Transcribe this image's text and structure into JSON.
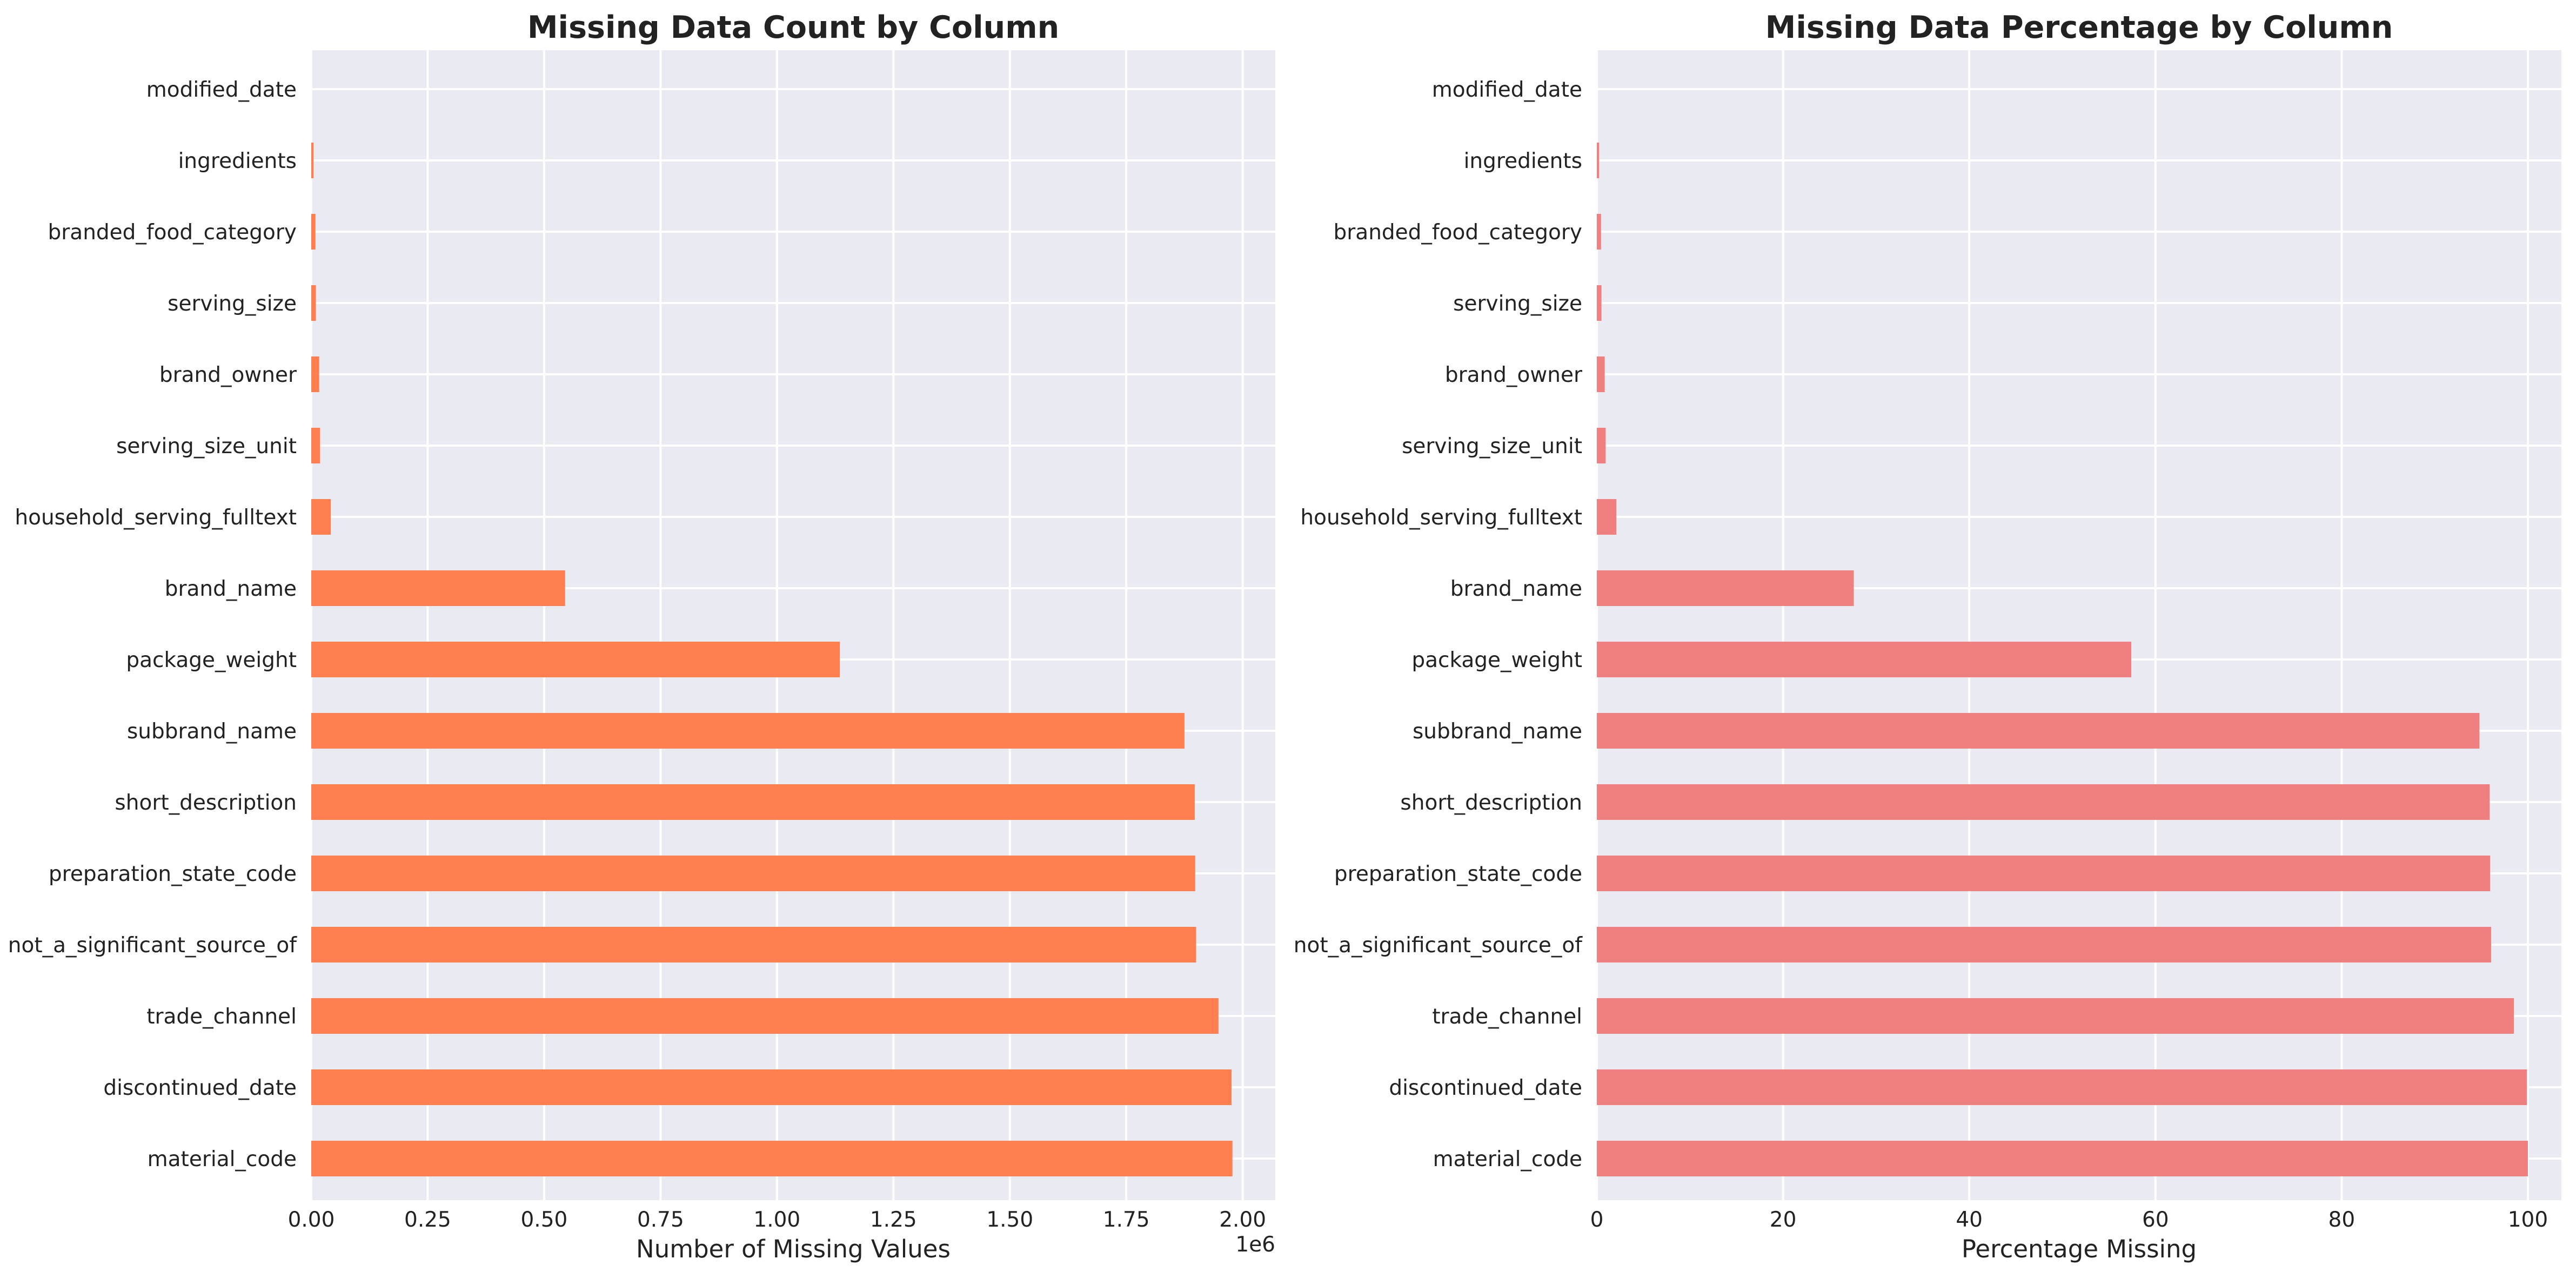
{
  "figure": {
    "panels": [
      {
        "title": "Missing Data Count by Column",
        "xlabel": "Number of Missing Values",
        "offset_label": "1e6",
        "bar_color": "#FF7F50",
        "xlim": [
          0,
          2.07
        ],
        "xticks": [
          "0.00",
          "0.25",
          "0.50",
          "0.75",
          "1.00",
          "1.25",
          "1.50",
          "1.75",
          "2.00"
        ],
        "xtick_values": [
          0,
          0.25,
          0.5,
          0.75,
          1.0,
          1.25,
          1.5,
          1.75,
          2.0
        ]
      },
      {
        "title": "Missing Data Percentage by Column",
        "xlabel": "Percentage Missing",
        "offset_label": "",
        "bar_color": "#F08080",
        "xlim": [
          0,
          103.6
        ],
        "xticks": [
          "0",
          "20",
          "40",
          "60",
          "80",
          "100"
        ],
        "xtick_values": [
          0,
          20,
          40,
          60,
          80,
          100
        ]
      }
    ]
  },
  "chart_data": [
    {
      "type": "bar",
      "orientation": "horizontal",
      "title": "Missing Data Count by Column",
      "xlabel": "Number of Missing Values",
      "ylabel": "",
      "x_scale_note": "1e6",
      "categories": [
        "modified_date",
        "ingredients",
        "branded_food_category",
        "serving_size",
        "brand_owner",
        "serving_size_unit",
        "household_serving_fulltext",
        "brand_name",
        "package_weight",
        "subbrand_name",
        "short_description",
        "preparation_state_code",
        "not_a_significant_source_of",
        "trade_channel",
        "discontinued_date",
        "material_code"
      ],
      "values": [
        0.0,
        0.005,
        0.009,
        0.01,
        0.017,
        0.019,
        0.042,
        0.545,
        1.135,
        1.875,
        1.897,
        1.898,
        1.9,
        1.948,
        1.976,
        1.978
      ],
      "xlim": [
        0,
        2.07
      ],
      "grid": true
    },
    {
      "type": "bar",
      "orientation": "horizontal",
      "title": "Missing Data Percentage by Column",
      "xlabel": "Percentage Missing",
      "ylabel": "",
      "categories": [
        "modified_date",
        "ingredients",
        "branded_food_category",
        "serving_size",
        "brand_owner",
        "serving_size_unit",
        "household_serving_fulltext",
        "brand_name",
        "package_weight",
        "subbrand_name",
        "short_description",
        "preparation_state_code",
        "not_a_significant_source_of",
        "trade_channel",
        "discontinued_date",
        "material_code"
      ],
      "values": [
        0.0,
        0.25,
        0.45,
        0.5,
        0.85,
        0.95,
        2.1,
        27.6,
        57.4,
        94.8,
        95.9,
        95.95,
        96.05,
        98.5,
        99.9,
        100.0
      ],
      "xlim": [
        0,
        103.6
      ],
      "grid": true
    }
  ]
}
